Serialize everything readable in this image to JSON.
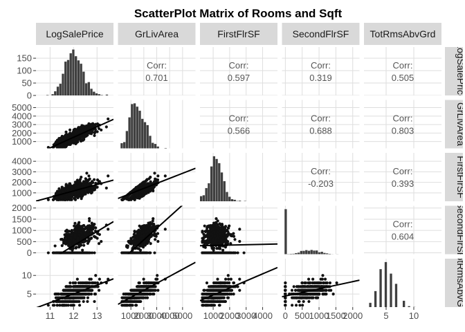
{
  "chart_data": {
    "type": "scatter",
    "title": "ScatterPlot Matrix of Rooms and Sqft",
    "variables": [
      "LogSalePrice",
      "GrLivArea",
      "FirstFlrSF",
      "SecondFlrSF",
      "TotRmsAbvGrd"
    ],
    "column_strips": [
      "LogSalePrice",
      "GrLivArea",
      "FirstFlrSF",
      "SecondFlrSF",
      "TotRmsAbvGrd"
    ],
    "row_strips": [
      "LogSalePrice",
      "GrLivArea",
      "FirstFlrSF",
      "SecondFlrSF",
      "TotRmsAbvGrd"
    ],
    "x_ticks": [
      [
        "11",
        "12",
        "13"
      ],
      [
        "1000",
        "2000",
        "3000",
        "4000",
        "5000"
      ],
      [
        "1000",
        "2000",
        "3000",
        "4000"
      ],
      [
        "0",
        "500",
        "1000",
        "1500",
        "2000"
      ],
      [
        "5",
        "10"
      ]
    ],
    "y_ticks": [
      [
        "0",
        "50",
        "100",
        "150"
      ],
      [
        "1000",
        "2000",
        "3000",
        "4000",
        "5000"
      ],
      [
        "1000",
        "2000",
        "3000",
        "4000"
      ],
      [
        "0",
        "500",
        "1000",
        "1500",
        "2000"
      ],
      [
        "5",
        "10"
      ]
    ],
    "x_tick_values": [
      [
        11,
        12,
        13
      ],
      [
        1000,
        2000,
        3000,
        4000,
        5000
      ],
      [
        1000,
        2000,
        3000,
        4000
      ],
      [
        0,
        500,
        1000,
        1500,
        2000
      ],
      [
        5,
        10
      ]
    ],
    "y_tick_values": [
      [
        0,
        50,
        100,
        150
      ],
      [
        1000,
        2000,
        3000,
        4000,
        5000
      ],
      [
        1000,
        2000,
        3000,
        4000
      ],
      [
        0,
        500,
        1000,
        1500,
        2000
      ],
      [
        5,
        10
      ]
    ],
    "x_ranges": [
      [
        10.4,
        13.7
      ],
      [
        0,
        6000
      ],
      [
        200,
        4900
      ],
      [
        -100,
        2200
      ],
      [
        1,
        15
      ]
    ],
    "y_ranges": [
      [
        0,
        195
      ],
      [
        200,
        5900
      ],
      [
        200,
        4800
      ],
      [
        -60,
        2100
      ],
      [
        1.5,
        14.5
      ]
    ],
    "correlation_label": "Corr:",
    "correlations": [
      {
        "row": 0,
        "col": 1,
        "value": "0.701"
      },
      {
        "row": 0,
        "col": 2,
        "value": "0.597"
      },
      {
        "row": 0,
        "col": 3,
        "value": "0.319"
      },
      {
        "row": 0,
        "col": 4,
        "value": "0.505"
      },
      {
        "row": 1,
        "col": 2,
        "value": "0.566"
      },
      {
        "row": 1,
        "col": 3,
        "value": "0.688"
      },
      {
        "row": 1,
        "col": 4,
        "value": "0.803"
      },
      {
        "row": 2,
        "col": 3,
        "value": "-0.203"
      },
      {
        "row": 2,
        "col": 4,
        "value": "0.393"
      },
      {
        "row": 3,
        "col": 4,
        "value": "0.604"
      }
    ],
    "grid": true,
    "colors": {
      "points": "#111111",
      "bars": "#3f3f3f",
      "strip": "#d9d9d9",
      "grid": "#dedede"
    }
  }
}
